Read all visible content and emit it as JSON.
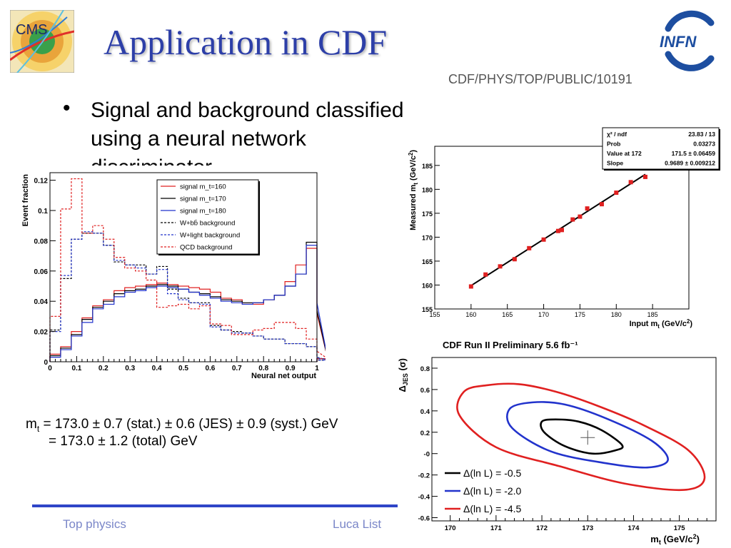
{
  "slide": {
    "title": "Application in CDF",
    "reference": "CDF/PHYS/TOP/PUBLIC/10191",
    "bullet_symbol": "•",
    "bullet_text": "Signal and background classified using a neural network discriminator",
    "formula_line1": {
      "mt": "m",
      "sub": "t",
      "rest": " = 173.0 ± 0.7 (stat.) ± 0.6 (JES) ± 0.9 (syst.) GeV"
    },
    "formula_line2": "= 173.0 ± 1.2 (total) GeV",
    "footer_left": "Top physics",
    "footer_right": "Luca List",
    "logo_left_text": "CMS",
    "logo_right_text": "INFN",
    "accent_color": "#2d3fa8"
  },
  "chart_data": [
    {
      "type": "line",
      "xlabel": "Neural net output",
      "ylabel": "Event fraction",
      "xlim": [
        0,
        1
      ],
      "ylim": [
        0,
        0.125
      ],
      "xticks": [
        "0",
        "0.1",
        "0.2",
        "0.3",
        "0.4",
        "0.5",
        "0.6",
        "0.7",
        "0.8",
        "0.9",
        "1"
      ],
      "yticks": [
        "0",
        "0.02",
        "0.04",
        "0.06",
        "0.08",
        "0.1",
        "0.12"
      ],
      "legend_position": "top-right",
      "bin_width": 0.04,
      "series": [
        {
          "name": "signal m_t=160",
          "color": "#e02020",
          "dash": "",
          "values": [
            0.005,
            0.01,
            0.02,
            0.029,
            0.037,
            0.041,
            0.047,
            0.049,
            0.05,
            0.051,
            0.052,
            0.051,
            0.05,
            0.049,
            0.048,
            0.046,
            0.042,
            0.041,
            0.038,
            0.038,
            0.041,
            0.044,
            0.053,
            0.064,
            0.075,
            0.032,
            0.002
          ]
        },
        {
          "name": "signal m_t=170",
          "color": "#000000",
          "dash": "",
          "values": [
            0.004,
            0.009,
            0.018,
            0.028,
            0.036,
            0.04,
            0.045,
            0.047,
            0.048,
            0.05,
            0.051,
            0.05,
            0.048,
            0.046,
            0.045,
            0.043,
            0.041,
            0.04,
            0.039,
            0.039,
            0.041,
            0.044,
            0.05,
            0.058,
            0.079,
            0.034,
            0.002
          ]
        },
        {
          "name": "signal m_t=180",
          "color": "#2233cc",
          "dash": "",
          "values": [
            0.003,
            0.008,
            0.017,
            0.026,
            0.035,
            0.038,
            0.043,
            0.046,
            0.047,
            0.049,
            0.05,
            0.049,
            0.048,
            0.046,
            0.044,
            0.042,
            0.04,
            0.039,
            0.038,
            0.039,
            0.041,
            0.044,
            0.05,
            0.058,
            0.077,
            0.039,
            0.002
          ]
        },
        {
          "name": "W+bb̄ background",
          "color": "#000000",
          "dash": "3,2",
          "values": [
            0.021,
            0.055,
            0.081,
            0.085,
            0.085,
            0.077,
            0.066,
            0.064,
            0.064,
            0.058,
            0.063,
            0.048,
            0.042,
            0.039,
            0.039,
            0.024,
            0.021,
            0.02,
            0.019,
            0.017,
            0.015,
            0.015,
            0.012,
            0.012,
            0.01,
            0.003,
            0.001
          ]
        },
        {
          "name": "W+light background",
          "color": "#2233cc",
          "dash": "3,2",
          "values": [
            0.02,
            0.057,
            0.081,
            0.086,
            0.085,
            0.077,
            0.067,
            0.064,
            0.062,
            0.058,
            0.061,
            0.045,
            0.041,
            0.039,
            0.038,
            0.023,
            0.021,
            0.019,
            0.019,
            0.017,
            0.015,
            0.015,
            0.012,
            0.012,
            0.01,
            0.003,
            0.001
          ]
        },
        {
          "name": "QCD background",
          "color": "#e02020",
          "dash": "3,2",
          "values": [
            0.03,
            0.101,
            0.121,
            0.085,
            0.09,
            0.081,
            0.069,
            0.062,
            0.06,
            0.054,
            0.036,
            0.037,
            0.038,
            0.035,
            0.037,
            0.025,
            0.024,
            0.018,
            0.018,
            0.021,
            0.022,
            0.026,
            0.026,
            0.022,
            0.015,
            0.007,
            0.002
          ]
        }
      ]
    },
    {
      "type": "scatter",
      "xlabel": "Input m_t (GeV/c²)",
      "ylabel": "Measured m_t (GeV/c²)",
      "xlim": [
        155,
        190
      ],
      "ylim": [
        155,
        189
      ],
      "xticks": [
        155,
        160,
        165,
        170,
        175,
        180,
        185
      ],
      "yticks": [
        155,
        160,
        165,
        170,
        175,
        180,
        185
      ],
      "x": [
        160,
        162,
        164,
        166,
        168,
        170,
        172,
        172.5,
        174,
        175,
        176,
        178,
        180,
        182,
        184
      ],
      "y": [
        159.7,
        162.2,
        163.9,
        165.4,
        167.7,
        169.5,
        171.3,
        171.5,
        173.7,
        174.3,
        176,
        176.9,
        179.3,
        181.5,
        182.6
      ],
      "fit": {
        "slope": 0.9689,
        "value_at_172": 171.5
      },
      "stats_box": [
        {
          "label": "χ² / ndf",
          "value": "23.83 / 13"
        },
        {
          "label": "Prob",
          "value": "0.03273"
        },
        {
          "label": "Value at 172",
          "value": "171.5 ± 0.06459"
        },
        {
          "label": "Slope",
          "value": "0.9689 ± 0.009212"
        }
      ]
    },
    {
      "type": "scatter",
      "title": "CDF Run II Preliminary 5.6 fb⁻¹",
      "xlabel": "m_t (GeV/c²)",
      "ylabel": "Δ_JES (σ)",
      "xlim": [
        169.6,
        175.8
      ],
      "ylim": [
        -0.63,
        0.9
      ],
      "xticks": [
        "170",
        "171",
        "172",
        "173",
        "174",
        "175"
      ],
      "yticks": [
        "-0.6",
        "-0.4",
        "-0.2",
        "-0",
        "0.2",
        "0.4",
        "0.6",
        "0.8"
      ],
      "best_fit": {
        "x": 173.0,
        "y": 0.15
      },
      "legend_position": "bottom-left",
      "contours": [
        {
          "name": "Δ(ln L) = -0.5",
          "color": "#000000",
          "cx": 173.0,
          "cy": 0.15,
          "points": [
            [
              172.0,
              0.3
            ],
            [
              172.3,
              0.32
            ],
            [
              172.8,
              0.3
            ],
            [
              173.3,
              0.22
            ],
            [
              173.75,
              0.08
            ],
            [
              173.6,
              0.03
            ],
            [
              173.1,
              0.0
            ],
            [
              172.5,
              0.07
            ],
            [
              172.05,
              0.2
            ]
          ]
        },
        {
          "name": "Δ(ln L) = -2.0",
          "color": "#2233cc",
          "cx": 173.0,
          "cy": 0.15,
          "points": [
            [
              171.3,
              0.42
            ],
            [
              171.8,
              0.48
            ],
            [
              172.5,
              0.46
            ],
            [
              173.4,
              0.33
            ],
            [
              174.4,
              0.12
            ],
            [
              174.75,
              -0.06
            ],
            [
              174.3,
              -0.13
            ],
            [
              173.4,
              -0.09
            ],
            [
              172.2,
              0.02
            ],
            [
              171.35,
              0.24
            ]
          ]
        },
        {
          "name": "Δ(ln L) = -4.5",
          "color": "#e02020",
          "cx": 173.0,
          "cy": 0.15,
          "points": [
            [
              170.3,
              0.58
            ],
            [
              170.8,
              0.64
            ],
            [
              171.5,
              0.65
            ],
            [
              172.3,
              0.58
            ],
            [
              173.2,
              0.45
            ],
            [
              174.2,
              0.27
            ],
            [
              175.2,
              0.03
            ],
            [
              175.55,
              -0.23
            ],
            [
              175.1,
              -0.34
            ],
            [
              173.8,
              -0.28
            ],
            [
              172.4,
              -0.12
            ],
            [
              171.0,
              0.06
            ],
            [
              170.2,
              0.36
            ]
          ]
        }
      ]
    }
  ]
}
